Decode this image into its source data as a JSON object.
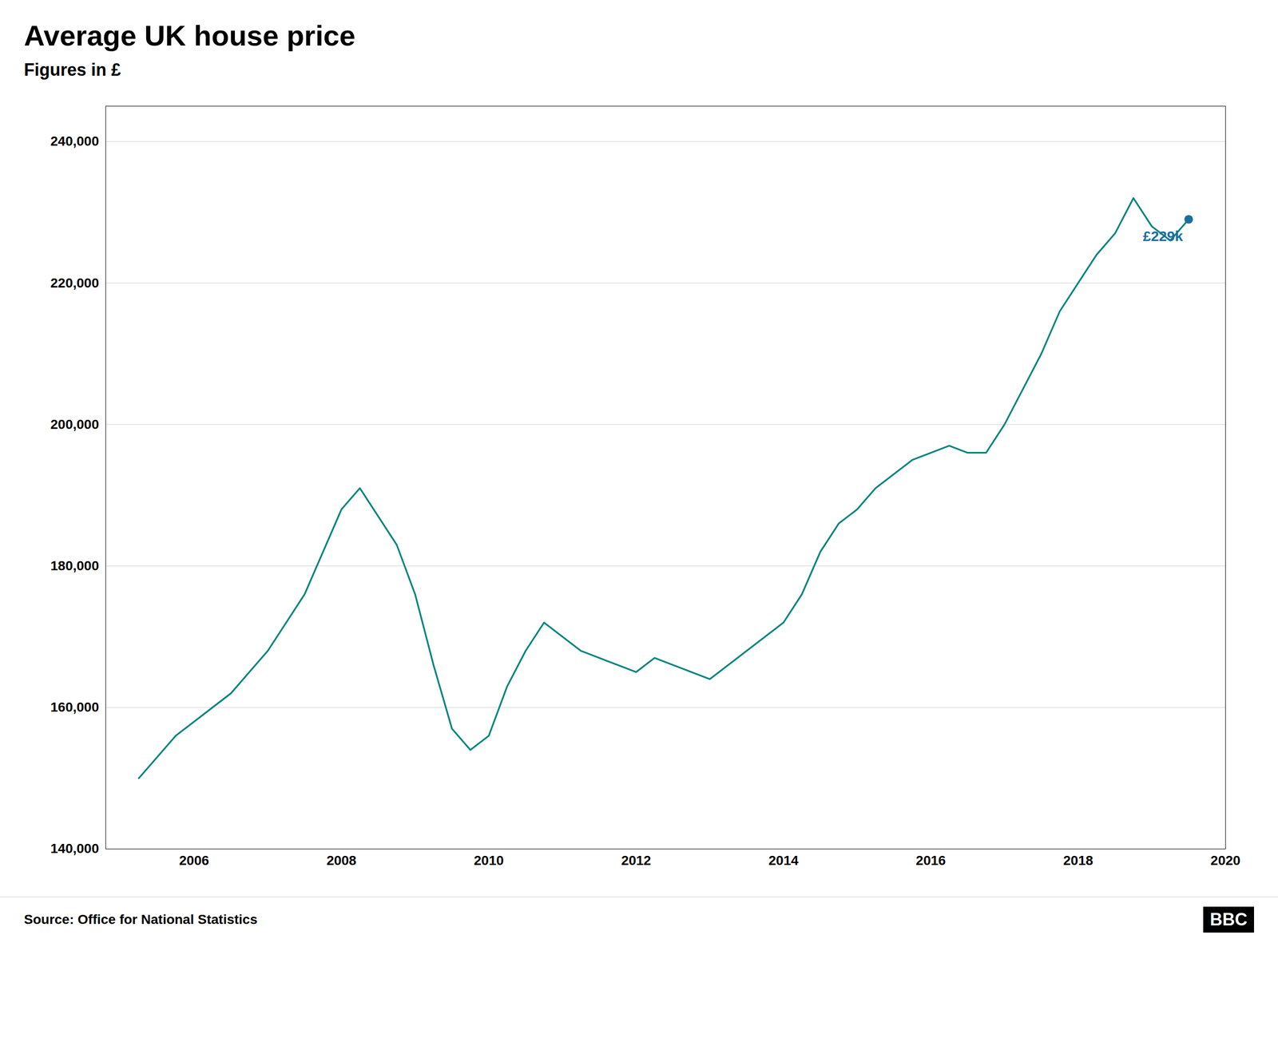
{
  "chart_data": {
    "type": "line",
    "title": "Average UK house price",
    "subtitle": "Figures in £",
    "source": "Source: Office for National Statistics",
    "logo": "BBC",
    "color": "#00857d",
    "x": [
      2005.25,
      2005.5,
      2005.75,
      2006.0,
      2006.25,
      2006.5,
      2006.75,
      2007.0,
      2007.25,
      2007.5,
      2007.75,
      2008.0,
      2008.25,
      2008.5,
      2008.75,
      2009.0,
      2009.25,
      2009.5,
      2009.75,
      2010.0,
      2010.25,
      2010.5,
      2010.75,
      2011.0,
      2011.25,
      2011.5,
      2011.75,
      2012.0,
      2012.25,
      2012.5,
      2012.75,
      2013.0,
      2013.25,
      2013.5,
      2013.75,
      2014.0,
      2014.25,
      2014.5,
      2014.75,
      2015.0,
      2015.25,
      2015.5,
      2015.75,
      2016.0,
      2016.25,
      2016.5,
      2016.75,
      2017.0,
      2017.25,
      2017.5,
      2017.75,
      2018.0,
      2018.25,
      2018.5,
      2018.75,
      2019.0,
      2019.25,
      2019.5
    ],
    "values": [
      150000,
      153000,
      156000,
      158000,
      160000,
      162000,
      165000,
      168000,
      172000,
      176000,
      182000,
      188000,
      191000,
      187000,
      183000,
      176000,
      166000,
      157000,
      154000,
      156000,
      163000,
      168000,
      172000,
      170000,
      168000,
      167000,
      166000,
      165000,
      167000,
      166000,
      165000,
      164000,
      166000,
      168000,
      170000,
      172000,
      176000,
      182000,
      186000,
      188000,
      191000,
      193000,
      195000,
      196000,
      197000,
      196000,
      196000,
      200000,
      205000,
      210000,
      216000,
      220000,
      224000,
      227000,
      232000,
      228000,
      226000,
      229000
    ],
    "annotations": [
      {
        "x": 2019.5,
        "y": 229000,
        "label": "£229k",
        "color": "#1a6fa0"
      }
    ],
    "xlim": [
      2004.8,
      2020.0
    ],
    "xticks": [
      2006,
      2008,
      2010,
      2012,
      2014,
      2016,
      2018,
      2020
    ],
    "ylim": [
      140000,
      245000
    ],
    "yticks": [
      {
        "value": 140000,
        "label": "140,000"
      },
      {
        "value": 160000,
        "label": "160,000"
      },
      {
        "value": 180000,
        "label": "180,000"
      },
      {
        "value": 200000,
        "label": "200,000"
      },
      {
        "value": 220000,
        "label": "220,000"
      },
      {
        "value": 240000,
        "label": "240,000"
      }
    ],
    "grid": true
  }
}
